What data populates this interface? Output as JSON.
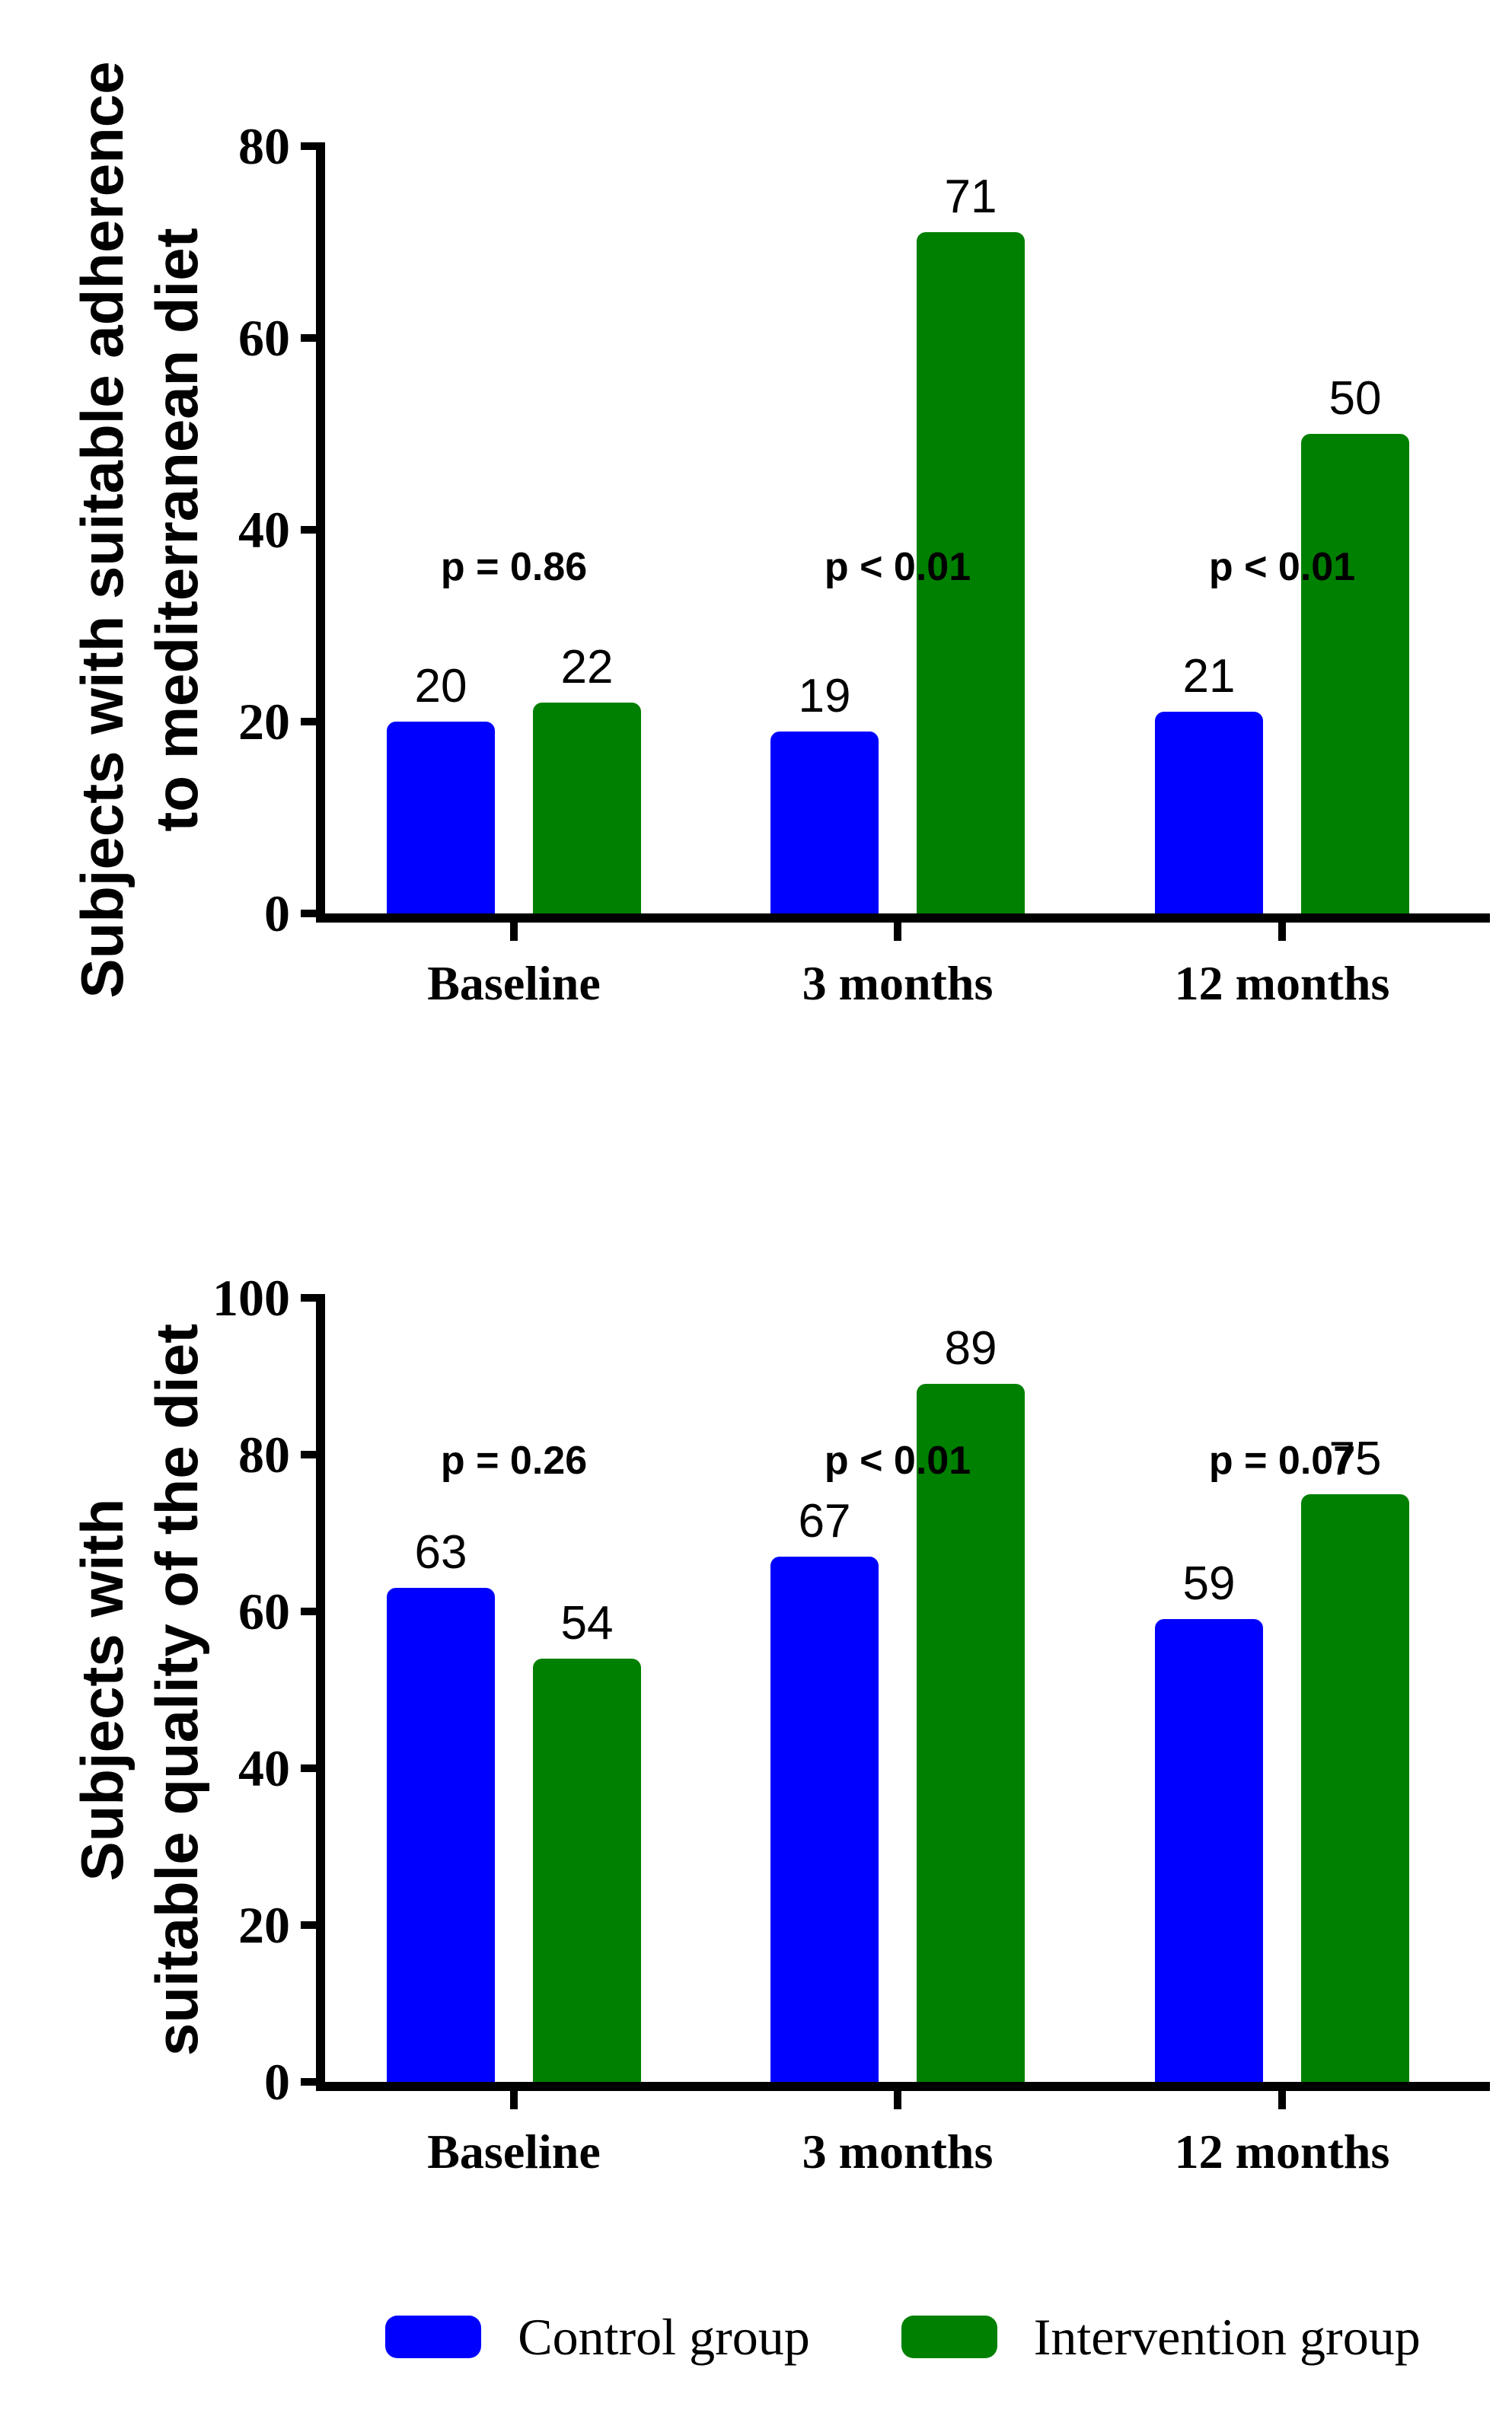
{
  "colors": {
    "control": "#0000FF",
    "intervention": "#008000",
    "axis": "#000000",
    "background": "#FFFFFF"
  },
  "chart_data": [
    {
      "type": "bar",
      "title": "",
      "ylabel": "Subjects with suitable adherence to mediterranean diet",
      "ylabel_lines": [
        "Subjects with suitable adherence",
        "to mediterranean diet"
      ],
      "xlabel": "",
      "categories": [
        "Baseline",
        "3 months",
        "12 months"
      ],
      "series": [
        {
          "name": "Control group",
          "color": "#0000FF",
          "values": [
            20,
            19,
            21
          ]
        },
        {
          "name": "Intervention group",
          "color": "#008000",
          "values": [
            22,
            71,
            50
          ]
        }
      ],
      "bar_value_labels": [
        [
          20,
          22
        ],
        [
          19,
          71
        ],
        [
          21,
          50
        ]
      ],
      "annotations": [
        "p = 0.86",
        "p < 0.01",
        "p < 0.01"
      ],
      "ylim": [
        0,
        80
      ],
      "ytick_step": 20,
      "yticks": [
        0,
        20,
        40,
        60,
        80
      ],
      "grid": false,
      "legend_position": "bottom"
    },
    {
      "type": "bar",
      "title": "",
      "ylabel": "Subjects with suitable quality of the diet",
      "ylabel_lines": [
        "Subjects with",
        "suitable quality of the diet"
      ],
      "xlabel": "",
      "categories": [
        "Baseline",
        "3 months",
        "12 months"
      ],
      "series": [
        {
          "name": "Control group",
          "color": "#0000FF",
          "values": [
            63,
            67,
            59
          ]
        },
        {
          "name": "Intervention group",
          "color": "#008000",
          "values": [
            54,
            89,
            75
          ]
        }
      ],
      "bar_value_labels": [
        [
          63,
          54
        ],
        [
          67,
          89
        ],
        [
          59,
          75
        ]
      ],
      "annotations": [
        "p = 0.26",
        "p < 0.01",
        "p = 0.07"
      ],
      "ylim": [
        0,
        100
      ],
      "ytick_step": 20,
      "yticks": [
        0,
        20,
        40,
        60,
        80,
        100
      ],
      "grid": false,
      "legend_position": "bottom"
    }
  ],
  "legend": {
    "items": [
      {
        "label": "Control group",
        "color": "#0000FF"
      },
      {
        "label": "Intervention group",
        "color": "#008000"
      }
    ]
  }
}
